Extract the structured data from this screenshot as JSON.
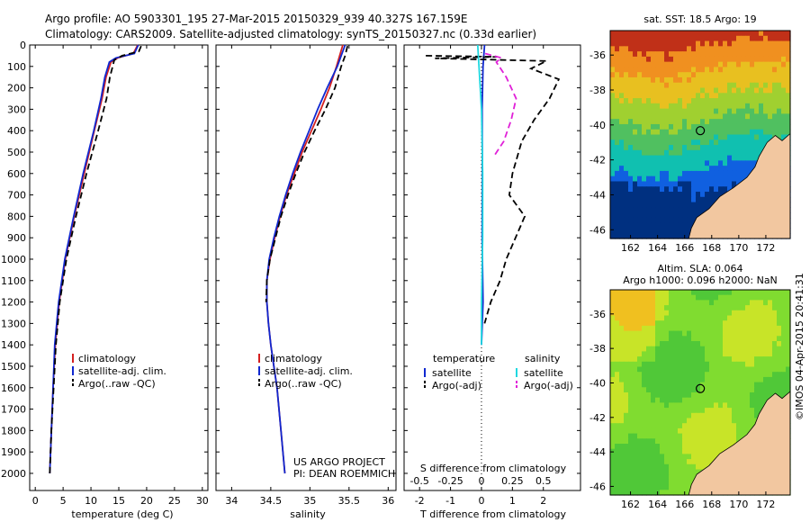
{
  "header": {
    "line1": "Argo profile: AO 5903301_195 27-Mar-2015 20150329_939 40.327S 167.159E",
    "line2": "Climatology: CARS2009. Satellite-adjusted climatology: synTS_20150327.nc (0.33d earlier)"
  },
  "maps": {
    "sst_title": "sat. SST: 18.5 Argo: 19",
    "sla_title1": "Altim. SLA: 0.064",
    "sla_title2": "Argo h1000: 0.096 h2000: NaN",
    "lon_ticks": [
      "162",
      "164",
      "166",
      "168",
      "170",
      "172"
    ],
    "lat_ticks": [
      "-36",
      "-38",
      "-40",
      "-42",
      "-44",
      "-46"
    ],
    "argo_lon": 167.159,
    "argo_lat": -40.327,
    "lon_range": [
      160.5,
      173.8
    ],
    "lat_range": [
      -46.5,
      -34.6
    ],
    "land_color": "#f2c7a0",
    "sst_colors": [
      "#003080",
      "#1060e0",
      "#10c0b0",
      "#50c060",
      "#a0d030",
      "#e8c020",
      "#f09020",
      "#c03018"
    ],
    "sla_colors": [
      "#50c838",
      "#80dc30",
      "#c8e428",
      "#f0c020",
      "#f09020"
    ]
  },
  "credit": "©IMOS 04-Apr-2015 20:41:31",
  "project": {
    "line1": "US ARGO PROJECT",
    "line2": "PI: DEAN ROEMMICH"
  },
  "chart_data": [
    {
      "type": "line",
      "panel": "temperature",
      "xlabel": "temperature (deg C)",
      "ylabel": "",
      "xlim": [
        -1,
        31
      ],
      "ylim": [
        0,
        2080
      ],
      "y_reversed": true,
      "x_ticks": [
        "0",
        "5",
        "10",
        "15",
        "20",
        "25",
        "30"
      ],
      "y_ticks": [
        "0",
        "100",
        "200",
        "300",
        "400",
        "500",
        "600",
        "700",
        "800",
        "900",
        "1000",
        "1100",
        "1200",
        "1300",
        "1400",
        "1500",
        "1600",
        "1700",
        "1800",
        "1900",
        "2000"
      ],
      "legend": {
        "placement": "lower-middle",
        "entries": [
          "climatology",
          "satellite-adj. clim.",
          "Argo(..raw -QC)"
        ]
      },
      "series": [
        {
          "name": "climatology",
          "color": "#d42020",
          "dash": "none",
          "depth": [
            0,
            40,
            60,
            80,
            150,
            250,
            400,
            600,
            800,
            1000,
            1200,
            1400,
            1600,
            1800,
            2000
          ],
          "values": [
            18.4,
            17.6,
            14.8,
            13.6,
            12.7,
            12.0,
            10.6,
            8.8,
            7.0,
            5.4,
            4.3,
            3.6,
            3.2,
            2.9,
            2.6
          ]
        },
        {
          "name": "satellite-adj. clim.",
          "color": "#1028d0",
          "dash": "none",
          "depth": [
            0,
            40,
            60,
            80,
            150,
            250,
            400,
            600,
            800,
            1000,
            1200,
            1400,
            1600,
            1800,
            2000
          ],
          "values": [
            18.5,
            17.8,
            14.5,
            13.3,
            12.5,
            11.8,
            10.5,
            8.6,
            6.9,
            5.3,
            4.2,
            3.5,
            3.2,
            2.9,
            2.6
          ]
        },
        {
          "name": "Argo(..raw -QC)",
          "color": "#000000",
          "dash": "7,4",
          "depth": [
            5,
            30,
            50,
            70,
            150,
            250,
            400,
            600,
            800,
            1000,
            1200,
            1400,
            1600,
            1800,
            2000
          ],
          "values": [
            19.0,
            18.6,
            15.6,
            14.2,
            13.4,
            12.8,
            11.3,
            9.2,
            7.3,
            5.6,
            4.4,
            3.7,
            3.3,
            2.9,
            2.6
          ]
        }
      ]
    },
    {
      "type": "line",
      "panel": "salinity",
      "xlabel": "salinity",
      "ylabel": "",
      "xlim": [
        33.8,
        36.1
      ],
      "ylim": [
        0,
        2080
      ],
      "y_reversed": true,
      "x_ticks": [
        "34",
        "34.5",
        "35",
        "35.5",
        "36"
      ],
      "legend": {
        "placement": "lower-middle",
        "entries": [
          "climatology",
          "satellite-adj. clim.",
          "Argo(..raw -QC)"
        ]
      },
      "series": [
        {
          "name": "climatology",
          "color": "#d42020",
          "dash": "none",
          "depth": [
            0,
            50,
            100,
            200,
            300,
            400,
            500,
            600,
            700,
            800,
            900,
            1000,
            1100,
            1200,
            1300,
            1400,
            1500,
            1600,
            1800,
            2000
          ],
          "values": [
            35.42,
            35.38,
            35.34,
            35.25,
            35.14,
            35.02,
            34.9,
            34.8,
            34.7,
            34.62,
            34.55,
            34.49,
            34.45,
            34.45,
            34.47,
            34.5,
            34.54,
            34.58,
            34.63,
            34.68
          ]
        },
        {
          "name": "satellite-adj. clim.",
          "color": "#1028d0",
          "dash": "none",
          "depth": [
            0,
            50,
            100,
            200,
            300,
            400,
            500,
            600,
            700,
            800,
            900,
            1000,
            1100,
            1200,
            1300,
            1400,
            1500,
            1600,
            1800,
            2000
          ],
          "values": [
            35.45,
            35.4,
            35.35,
            35.22,
            35.1,
            34.99,
            34.88,
            34.78,
            34.69,
            34.61,
            34.54,
            34.48,
            34.45,
            34.45,
            34.47,
            34.5,
            34.54,
            34.58,
            34.63,
            34.68
          ]
        },
        {
          "name": "Argo(..raw -QC)",
          "color": "#000000",
          "dash": "7,4",
          "depth": [
            5,
            50,
            100,
            200,
            300,
            400,
            500,
            600,
            700,
            800,
            900,
            1000,
            1100,
            1200
          ],
          "values": [
            35.48,
            35.45,
            35.4,
            35.32,
            35.2,
            35.06,
            34.93,
            34.82,
            34.72,
            34.63,
            34.56,
            34.49,
            34.45,
            34.44
          ]
        }
      ]
    },
    {
      "type": "line",
      "panel": "difference",
      "xlabel": "T difference from climatology",
      "xlabel_top": "S difference from climatology",
      "ylabel": "",
      "xlim": [
        -2.5,
        3.2
      ],
      "xlim_top": [
        -0.625,
        0.8
      ],
      "ylim": [
        0,
        2080
      ],
      "y_reversed": true,
      "x_ticks": [
        "-2",
        "-1",
        "0",
        "1",
        "2"
      ],
      "x_ticks_top": [
        "-0.5",
        "-0.25",
        "0",
        "0.25",
        "0.5"
      ],
      "legend": {
        "placement": "lower-middle",
        "temperature_header": "temperature",
        "salinity_header": "salinity",
        "entries": [
          "satellite",
          "Argo(-adj)",
          "satellite",
          "Argo(-adj)"
        ]
      },
      "series": [
        {
          "name": "satellite",
          "group": "temperature",
          "color": "#1028d0",
          "dash": "none",
          "depth": [
            0,
            100,
            300,
            600,
            900,
            1200,
            1400
          ],
          "values": [
            0.1,
            0.05,
            0.02,
            0.03,
            0.02,
            0.05,
            0.0
          ]
        },
        {
          "name": "Argo(-adj)",
          "group": "temperature",
          "color": "#000000",
          "dash": "7,4",
          "depth": [
            50,
            55,
            62,
            75,
            110,
            160,
            250,
            350,
            450,
            600,
            700,
            800,
            900,
            1000,
            1100,
            1200,
            1300
          ],
          "values": [
            -1.8,
            0.5,
            -1.5,
            2.1,
            1.6,
            2.5,
            2.2,
            1.7,
            1.3,
            1.0,
            0.9,
            1.4,
            1.1,
            0.8,
            0.6,
            0.3,
            0.1
          ]
        },
        {
          "name": "satellite",
          "group": "salinity",
          "color": "#20d8e0",
          "dash": "none",
          "depth": [
            0,
            100,
            300,
            600,
            900,
            1200,
            1400
          ],
          "values": [
            -0.03,
            -0.02,
            0.0,
            0.01,
            0.01,
            0.0,
            0.0
          ]
        },
        {
          "name": "Argo(-adj)",
          "group": "salinity",
          "color": "#e020d8",
          "dash": "7,4",
          "depth": [
            40,
            60,
            80,
            150,
            250,
            350,
            450,
            520
          ],
          "values": [
            0.03,
            0.16,
            0.12,
            0.2,
            0.28,
            0.24,
            0.18,
            0.1
          ]
        }
      ]
    }
  ]
}
